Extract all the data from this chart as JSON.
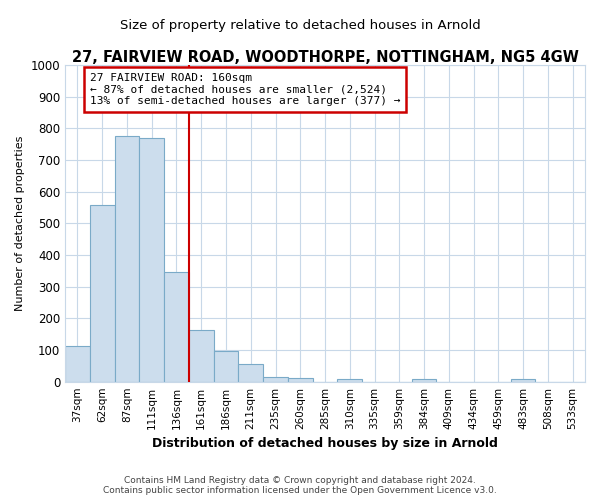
{
  "title": "27, FAIRVIEW ROAD, WOODTHORPE, NOTTINGHAM, NG5 4GW",
  "subtitle": "Size of property relative to detached houses in Arnold",
  "xlabel": "Distribution of detached houses by size in Arnold",
  "ylabel": "Number of detached properties",
  "categories": [
    "37sqm",
    "62sqm",
    "87sqm",
    "111sqm",
    "136sqm",
    "161sqm",
    "186sqm",
    "211sqm",
    "235sqm",
    "260sqm",
    "285sqm",
    "310sqm",
    "335sqm",
    "359sqm",
    "384sqm",
    "409sqm",
    "434sqm",
    "459sqm",
    "483sqm",
    "508sqm",
    "533sqm"
  ],
  "values": [
    112,
    558,
    775,
    770,
    345,
    162,
    96,
    55,
    15,
    13,
    0,
    8,
    0,
    0,
    8,
    0,
    0,
    0,
    8,
    0,
    0
  ],
  "bar_color": "#ccdded",
  "bar_edge_color": "#7aaac8",
  "property_line_x": 5,
  "property_address": "27 FAIRVIEW ROAD: 160sqm",
  "annotation_line1": "← 87% of detached houses are smaller (2,524)",
  "annotation_line2": "13% of semi-detached houses are larger (377) →",
  "annotation_box_facecolor": "#ffffff",
  "annotation_box_edgecolor": "#cc0000",
  "vline_color": "#cc0000",
  "ylim": [
    0,
    1000
  ],
  "yticks": [
    0,
    100,
    200,
    300,
    400,
    500,
    600,
    700,
    800,
    900,
    1000
  ],
  "footer_line1": "Contains HM Land Registry data © Crown copyright and database right 2024.",
  "footer_line2": "Contains public sector information licensed under the Open Government Licence v3.0.",
  "title_fontsize": 10.5,
  "subtitle_fontsize": 9.5,
  "background_color": "#ffffff",
  "grid_color": "#c8d8e8"
}
